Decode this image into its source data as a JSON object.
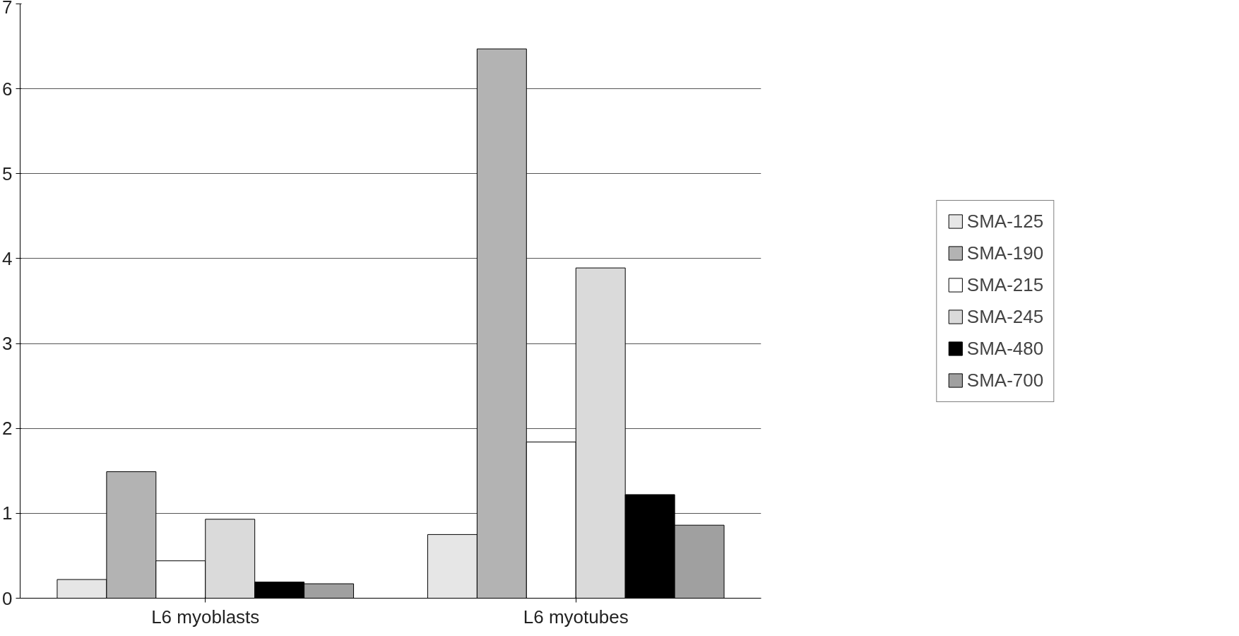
{
  "chart_data": {
    "type": "bar",
    "categories": [
      "L6 myoblasts",
      "L6 myotubes"
    ],
    "series": [
      {
        "name": "SMA-125",
        "color": "#e6e6e6",
        "values": [
          0.22,
          0.75
        ]
      },
      {
        "name": "SMA-190",
        "color": "#b3b3b3",
        "values": [
          1.49,
          6.47
        ]
      },
      {
        "name": "SMA-215",
        "color": "#ffffff",
        "values": [
          0.44,
          1.84
        ]
      },
      {
        "name": "SMA-245",
        "color": "#dadada",
        "values": [
          0.93,
          3.89
        ]
      },
      {
        "name": "SMA-480",
        "color": "#000000",
        "values": [
          0.19,
          1.22
        ]
      },
      {
        "name": "SMA-700",
        "color": "#a0a0a0",
        "values": [
          0.17,
          0.86
        ]
      }
    ],
    "ylim": [
      0,
      7
    ],
    "yticks": [
      0,
      1,
      2,
      3,
      4,
      5,
      6,
      7
    ],
    "grid": "y",
    "legend": "right"
  }
}
